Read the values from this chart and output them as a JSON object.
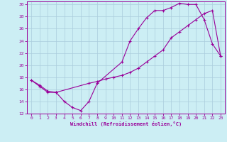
{
  "xlabel": "Windchill (Refroidissement éolien,°C)",
  "background_color": "#cceef4",
  "grid_color": "#aaccdd",
  "line_color": "#990099",
  "xlim": [
    -0.5,
    23.5
  ],
  "ylim": [
    12,
    30.5
  ],
  "yticks": [
    12,
    14,
    16,
    18,
    20,
    22,
    24,
    26,
    28,
    30
  ],
  "xticks": [
    0,
    1,
    2,
    3,
    4,
    5,
    6,
    7,
    8,
    9,
    10,
    11,
    12,
    13,
    14,
    15,
    16,
    17,
    18,
    19,
    20,
    21,
    22,
    23
  ],
  "curve1_x": [
    0,
    1,
    2,
    3,
    4,
    5,
    6,
    7,
    8,
    11,
    12,
    13,
    14,
    15,
    16,
    17,
    18,
    19,
    20,
    21,
    22,
    23
  ],
  "curve1_y": [
    17.5,
    16.5,
    15.5,
    15.5,
    14.0,
    13.0,
    12.5,
    14.0,
    17.0,
    20.5,
    24.0,
    26.0,
    27.8,
    29.0,
    29.0,
    29.5,
    30.2,
    30.0,
    30.0,
    27.5,
    23.5,
    21.5
  ],
  "curve2_x": [
    0,
    1,
    2,
    3,
    7,
    8,
    9,
    10,
    11,
    12,
    13,
    14,
    15,
    16,
    17,
    18,
    19,
    20,
    21,
    22,
    23
  ],
  "curve2_y": [
    17.5,
    16.7,
    15.7,
    15.5,
    17.0,
    17.3,
    17.7,
    18.0,
    18.3,
    18.8,
    19.5,
    20.5,
    21.5,
    22.5,
    24.5,
    25.5,
    26.5,
    27.5,
    28.5,
    29.0,
    21.5
  ]
}
